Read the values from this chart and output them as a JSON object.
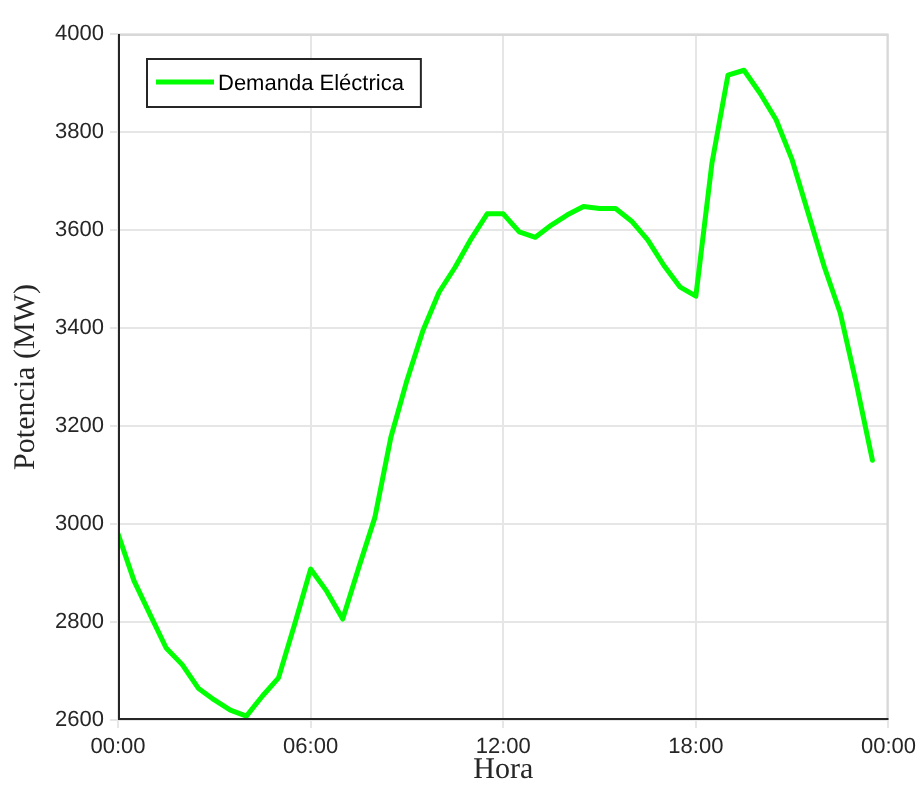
{
  "chart_data": {
    "type": "line",
    "xlabel": "Hora",
    "ylabel": "Potencia (MW)",
    "x": [
      0,
      0.5,
      1,
      1.5,
      2,
      2.5,
      3,
      3.5,
      4,
      4.5,
      5,
      5.5,
      6,
      6.5,
      7,
      7.5,
      8,
      8.5,
      9,
      9.5,
      10,
      10.5,
      11,
      11.5,
      12,
      12.5,
      13,
      13.5,
      14,
      14.5,
      15,
      15.5,
      16,
      16.5,
      17,
      17.5,
      18,
      18.5,
      19,
      19.5,
      20,
      20.5,
      21,
      21.5,
      22,
      22.5,
      23,
      23.5
    ],
    "series": [
      {
        "name": "Demanda Eléctrica",
        "color": "#00ff00",
        "values": [
          2980,
          2884,
          2815,
          2747,
          2713,
          2665,
          2641,
          2620,
          2608,
          2649,
          2686,
          2795,
          2908,
          2863,
          2806,
          2911,
          3013,
          3177,
          3293,
          3395,
          3473,
          3524,
          3582,
          3633,
          3633,
          3596,
          3585,
          3610,
          3631,
          3648,
          3644,
          3644,
          3618,
          3580,
          3528,
          3484,
          3465,
          3736,
          3916,
          3926,
          3879,
          3825,
          3743,
          3634,
          3525,
          3430,
          3286,
          3130
        ]
      }
    ],
    "xlim": [
      0,
      24
    ],
    "xticks": [
      {
        "value": 0,
        "label": "00:00"
      },
      {
        "value": 6,
        "label": "06:00"
      },
      {
        "value": 12,
        "label": "12:00"
      },
      {
        "value": 18,
        "label": "18:00"
      },
      {
        "value": 24,
        "label": "00:00"
      }
    ],
    "ylim": [
      2600,
      4000
    ],
    "yticks": [
      2600,
      2800,
      3000,
      3200,
      3400,
      3600,
      3800,
      4000
    ],
    "grid": true,
    "legend": "top left",
    "marker": "none",
    "line_style": "solid"
  }
}
